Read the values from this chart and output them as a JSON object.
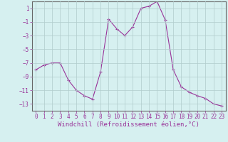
{
  "x": [
    0,
    1,
    2,
    3,
    4,
    5,
    6,
    7,
    8,
    9,
    10,
    11,
    12,
    13,
    14,
    15,
    16,
    17,
    18,
    19,
    20,
    21,
    22,
    23
  ],
  "y": [
    -8,
    -7.3,
    -7,
    -7,
    -9.5,
    -11,
    -11.8,
    -12.3,
    -8.3,
    -0.6,
    -2.0,
    -3.0,
    -1.7,
    1.0,
    1.3,
    2.0,
    -0.7,
    -8.0,
    -10.5,
    -11.3,
    -11.8,
    -12.2,
    -13.0,
    -13.3
  ],
  "line_color": "#993399",
  "marker": "+",
  "marker_size": 3,
  "bg_color": "#d6f0f0",
  "grid_color": "#b0cccc",
  "xlabel": "Windchill (Refroidissement éolien,°C)",
  "xlabel_fontsize": 6.5,
  "tick_fontsize": 5.5,
  "yticks": [
    1,
    -1,
    -3,
    -5,
    -7,
    -9,
    -11,
    -13
  ],
  "xticks": [
    0,
    1,
    2,
    3,
    4,
    5,
    6,
    7,
    8,
    9,
    10,
    11,
    12,
    13,
    14,
    15,
    16,
    17,
    18,
    19,
    20,
    21,
    22,
    23
  ],
  "ylim": [
    -14,
    2
  ],
  "xlim": [
    -0.5,
    23.5
  ]
}
